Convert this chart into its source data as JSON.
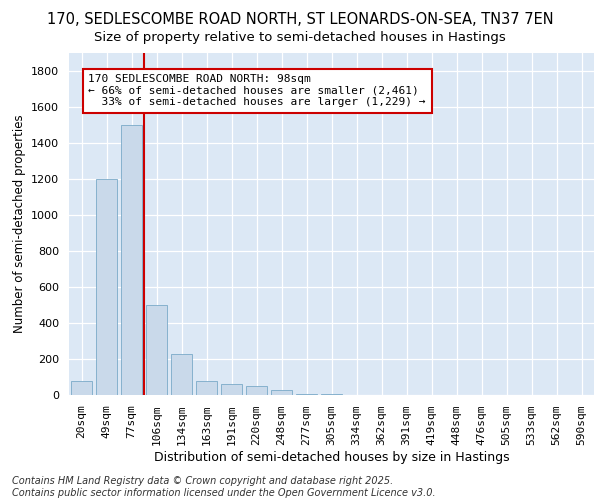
{
  "title_line1": "170, SEDLESCOMBE ROAD NORTH, ST LEONARDS-ON-SEA, TN37 7EN",
  "title_line2": "Size of property relative to semi-detached houses in Hastings",
  "xlabel": "Distribution of semi-detached houses by size in Hastings",
  "ylabel": "Number of semi-detached properties",
  "categories": [
    "20sqm",
    "49sqm",
    "77sqm",
    "106sqm",
    "134sqm",
    "163sqm",
    "191sqm",
    "220sqm",
    "248sqm",
    "277sqm",
    "305sqm",
    "334sqm",
    "362sqm",
    "391sqm",
    "419sqm",
    "448sqm",
    "476sqm",
    "505sqm",
    "533sqm",
    "562sqm",
    "590sqm"
  ],
  "values": [
    75,
    1200,
    1500,
    500,
    225,
    80,
    62,
    50,
    25,
    5,
    3,
    2,
    1,
    1,
    0,
    0,
    0,
    0,
    0,
    0,
    0
  ],
  "bar_color": "#c9d9ea",
  "bar_edge_color": "#7aaac8",
  "vline_color": "#cc0000",
  "vline_position": 2.5,
  "annotation_text": "170 SEDLESCOMBE ROAD NORTH: 98sqm\n← 66% of semi-detached houses are smaller (2,461)\n  33% of semi-detached houses are larger (1,229) →",
  "annotation_box_facecolor": "#ffffff",
  "annotation_box_edgecolor": "#cc0000",
  "ylim": [
    0,
    1900
  ],
  "yticks": [
    0,
    200,
    400,
    600,
    800,
    1000,
    1200,
    1400,
    1600,
    1800
  ],
  "background_color": "#dce8f5",
  "fig_background": "#ffffff",
  "footer_text": "Contains HM Land Registry data © Crown copyright and database right 2025.\nContains public sector information licensed under the Open Government Licence v3.0.",
  "title_fontsize": 10.5,
  "subtitle_fontsize": 9.5,
  "axis_label_fontsize": 9,
  "tick_fontsize": 8,
  "annotation_fontsize": 8,
  "footer_fontsize": 7,
  "ylabel_fontsize": 8.5
}
